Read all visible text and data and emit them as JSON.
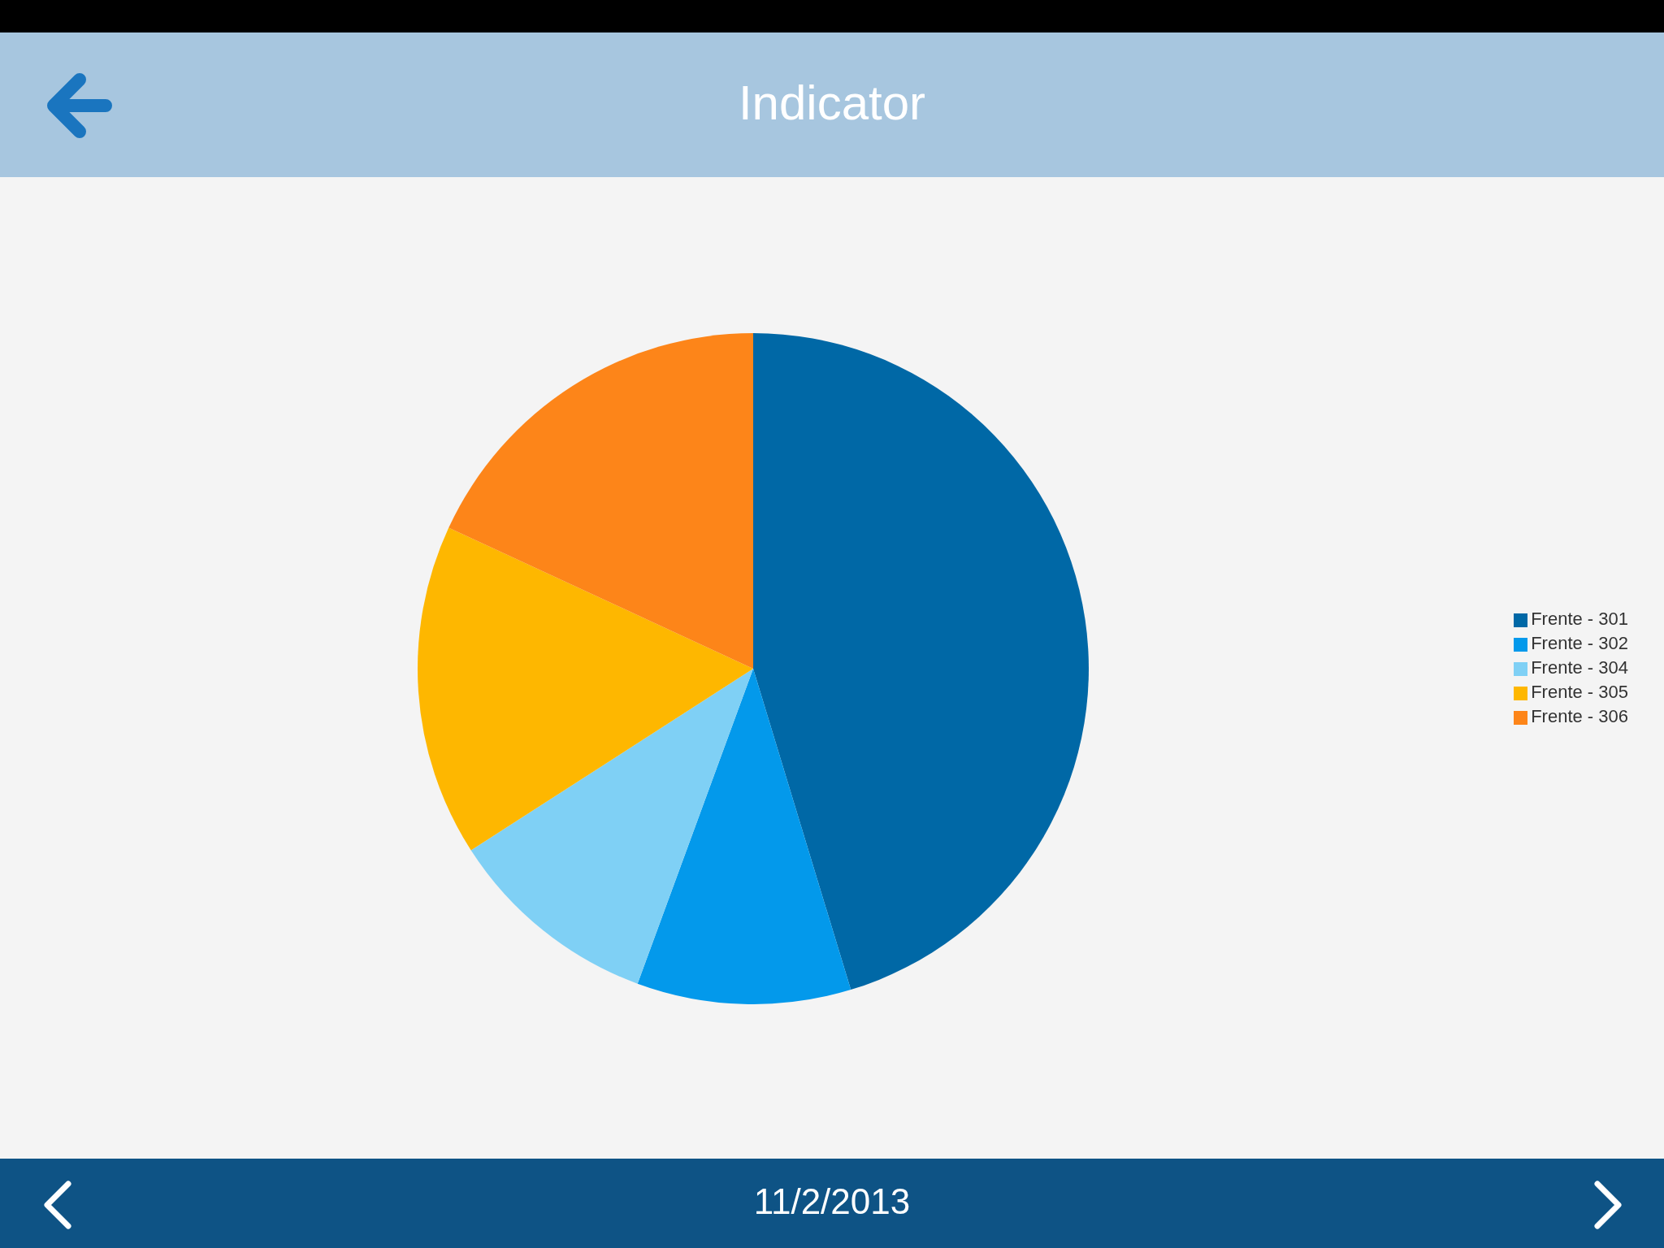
{
  "chart_data": {
    "type": "pie",
    "title": "Indicator",
    "categories": [
      "Frente - 301",
      "Frente - 302",
      "Frente - 304",
      "Frente - 305",
      "Frente - 306"
    ],
    "values": [
      45.3,
      10.3,
      10.3,
      16.0,
      18.1
    ],
    "colors": [
      "#0068a6",
      "#0399eb",
      "#7fd0f5",
      "#feb700",
      "#fd8519"
    ],
    "legend": "right",
    "annotations": [
      "11/2/2013"
    ]
  }
}
